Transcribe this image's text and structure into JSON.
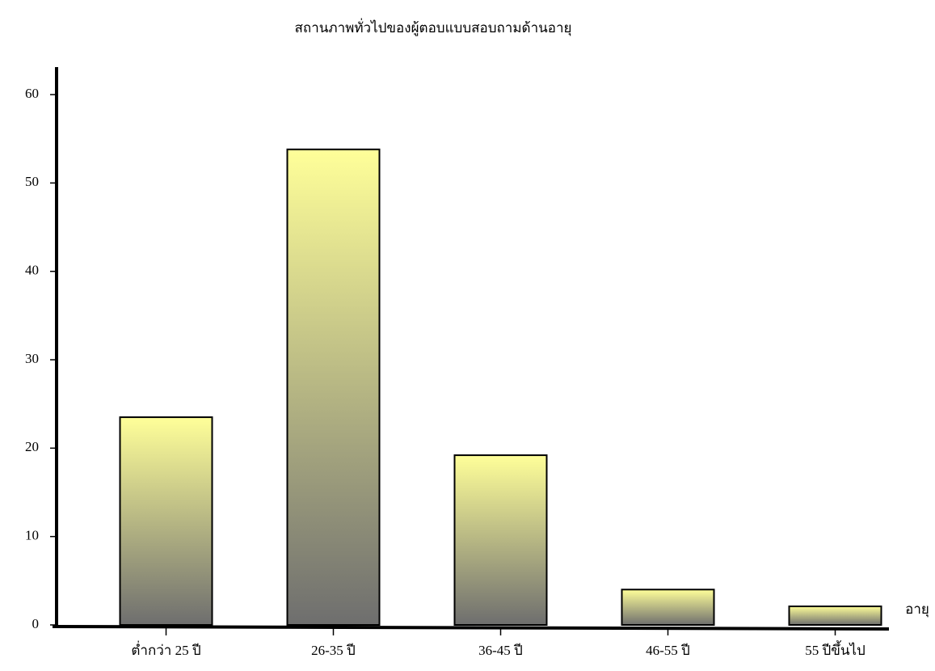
{
  "chart_data": {
    "type": "bar",
    "title": "สถานภาพทั่วไปของผู้ตอบแบบสอบถามด้านอายุ",
    "x_label": "อายุ",
    "categories": [
      "ต่ำกว่า 25 ปี",
      "26-35  ปี",
      "36-45 ปี",
      "46-55 ปี",
      "55 ปีขึ้นไป"
    ],
    "values": [
      23.5,
      53.8,
      19.2,
      4,
      2.1
    ],
    "color": "#ffff99",
    "ylim": [
      0,
      60
    ],
    "yticks": [
      0,
      10,
      20,
      30,
      40,
      50,
      60
    ],
    "grid": false
  }
}
